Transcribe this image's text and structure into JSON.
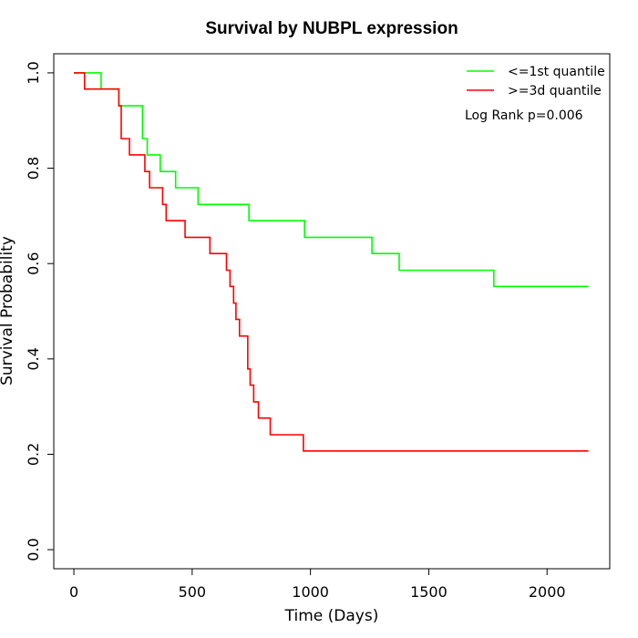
{
  "chart_data": {
    "type": "line",
    "step": true,
    "title": "Survival by NUBPL expression",
    "xlabel": "Time (Days)",
    "ylabel": "Survival Probability",
    "xlim": [
      -85,
      2265
    ],
    "ylim": [
      -0.04,
      1.04
    ],
    "xticks": [
      0,
      500,
      1000,
      1500,
      2000
    ],
    "yticks": [
      0.0,
      0.2,
      0.4,
      0.6,
      0.8,
      1.0
    ],
    "xtick_labels": [
      "0",
      "500",
      "1000",
      "1500",
      "2000"
    ],
    "ytick_labels": [
      "0.0",
      "0.2",
      "0.4",
      "0.6",
      "0.8",
      "1.0"
    ],
    "grid": false,
    "legend_position": "top-right",
    "annotation": "Log Rank p=0.006",
    "series": [
      {
        "name": "<=1st quantile",
        "color": "#00ff00",
        "points": [
          [
            0,
            1.0
          ],
          [
            115,
            0.966
          ],
          [
            190,
            0.931
          ],
          [
            290,
            0.862
          ],
          [
            310,
            0.828
          ],
          [
            365,
            0.793
          ],
          [
            430,
            0.759
          ],
          [
            525,
            0.724
          ],
          [
            740,
            0.69
          ],
          [
            975,
            0.655
          ],
          [
            1260,
            0.621
          ],
          [
            1375,
            0.586
          ],
          [
            1775,
            0.552
          ],
          [
            2175,
            0.552
          ]
        ]
      },
      {
        "name": ">=3d quantile",
        "color": "#ff0000",
        "points": [
          [
            0,
            1.0
          ],
          [
            45,
            0.966
          ],
          [
            190,
            0.931
          ],
          [
            200,
            0.862
          ],
          [
            235,
            0.828
          ],
          [
            300,
            0.793
          ],
          [
            320,
            0.759
          ],
          [
            375,
            0.724
          ],
          [
            390,
            0.69
          ],
          [
            470,
            0.655
          ],
          [
            575,
            0.621
          ],
          [
            645,
            0.586
          ],
          [
            660,
            0.552
          ],
          [
            675,
            0.517
          ],
          [
            685,
            0.483
          ],
          [
            700,
            0.448
          ],
          [
            735,
            0.379
          ],
          [
            745,
            0.345
          ],
          [
            760,
            0.31
          ],
          [
            780,
            0.276
          ],
          [
            830,
            0.241
          ],
          [
            970,
            0.207
          ],
          [
            2175,
            0.207
          ]
        ]
      }
    ]
  }
}
